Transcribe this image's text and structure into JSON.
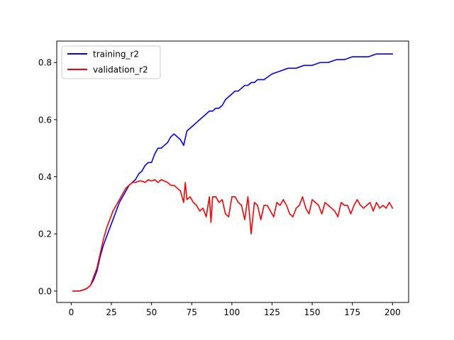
{
  "chart_data": {
    "type": "line",
    "title": "",
    "xlabel": "",
    "ylabel": "",
    "xlim": [
      -9,
      210
    ],
    "ylim": [
      -0.04,
      0.875
    ],
    "xticks": [
      0,
      25,
      50,
      75,
      100,
      125,
      150,
      175,
      200
    ],
    "yticks": [
      0.0,
      0.2,
      0.4,
      0.6,
      0.8
    ],
    "xtick_labels": [
      "0",
      "25",
      "50",
      "75",
      "100",
      "125",
      "150",
      "175",
      "200"
    ],
    "ytick_labels": [
      "0.0",
      "0.2",
      "0.4",
      "0.6",
      "0.8"
    ],
    "grid": false,
    "legend": "top-left",
    "series": [
      {
        "name": "training_r2",
        "color": "#0000ff",
        "x": [
          1,
          5,
          8,
          10,
          12,
          14,
          16,
          18,
          20,
          22,
          24,
          26,
          28,
          30,
          32,
          34,
          36,
          38,
          40,
          42,
          44,
          46,
          48,
          50,
          52,
          54,
          56,
          58,
          60,
          62,
          64,
          66,
          68,
          70,
          72,
          74,
          76,
          78,
          80,
          82,
          84,
          86,
          88,
          90,
          92,
          94,
          96,
          98,
          100,
          102,
          104,
          106,
          108,
          110,
          112,
          114,
          116,
          118,
          120,
          125,
          130,
          135,
          140,
          145,
          150,
          155,
          160,
          165,
          170,
          175,
          180,
          185,
          190,
          195,
          200
        ],
        "y": [
          0.0,
          0.0,
          0.005,
          0.01,
          0.02,
          0.04,
          0.07,
          0.12,
          0.16,
          0.19,
          0.22,
          0.25,
          0.28,
          0.31,
          0.33,
          0.35,
          0.37,
          0.38,
          0.39,
          0.41,
          0.42,
          0.44,
          0.45,
          0.45,
          0.48,
          0.5,
          0.5,
          0.51,
          0.52,
          0.54,
          0.55,
          0.54,
          0.53,
          0.51,
          0.56,
          0.57,
          0.58,
          0.59,
          0.6,
          0.61,
          0.62,
          0.63,
          0.63,
          0.64,
          0.64,
          0.65,
          0.67,
          0.68,
          0.69,
          0.7,
          0.7,
          0.71,
          0.72,
          0.72,
          0.73,
          0.73,
          0.74,
          0.74,
          0.74,
          0.76,
          0.77,
          0.78,
          0.78,
          0.79,
          0.79,
          0.8,
          0.8,
          0.81,
          0.81,
          0.82,
          0.82,
          0.82,
          0.83,
          0.83,
          0.83
        ]
      },
      {
        "name": "validation_r2",
        "color": "#ff0000",
        "x": [
          1,
          5,
          8,
          10,
          12,
          14,
          16,
          18,
          20,
          22,
          24,
          26,
          28,
          30,
          32,
          34,
          36,
          38,
          40,
          42,
          44,
          46,
          48,
          50,
          52,
          54,
          56,
          58,
          60,
          62,
          64,
          66,
          68,
          70,
          71,
          72,
          74,
          76,
          78,
          80,
          82,
          84,
          86,
          87,
          88,
          90,
          92,
          94,
          96,
          98,
          100,
          102,
          104,
          106,
          108,
          110,
          112,
          114,
          116,
          118,
          120,
          122,
          124,
          126,
          128,
          130,
          132,
          134,
          136,
          138,
          140,
          142,
          144,
          146,
          148,
          150,
          152,
          154,
          156,
          158,
          160,
          162,
          164,
          166,
          168,
          170,
          172,
          174,
          176,
          178,
          180,
          182,
          184,
          186,
          188,
          190,
          192,
          194,
          196,
          198,
          200
        ],
        "y": [
          0.0,
          0.0,
          0.005,
          0.01,
          0.02,
          0.05,
          0.08,
          0.13,
          0.18,
          0.22,
          0.25,
          0.28,
          0.3,
          0.32,
          0.34,
          0.36,
          0.37,
          0.38,
          0.38,
          0.385,
          0.385,
          0.38,
          0.39,
          0.385,
          0.39,
          0.38,
          0.39,
          0.385,
          0.38,
          0.37,
          0.37,
          0.36,
          0.35,
          0.31,
          0.38,
          0.32,
          0.33,
          0.31,
          0.3,
          0.28,
          0.29,
          0.26,
          0.33,
          0.24,
          0.33,
          0.33,
          0.31,
          0.32,
          0.27,
          0.26,
          0.33,
          0.33,
          0.31,
          0.3,
          0.25,
          0.33,
          0.2,
          0.31,
          0.3,
          0.25,
          0.3,
          0.3,
          0.28,
          0.26,
          0.31,
          0.3,
          0.32,
          0.3,
          0.27,
          0.26,
          0.29,
          0.3,
          0.33,
          0.29,
          0.27,
          0.32,
          0.31,
          0.3,
          0.27,
          0.31,
          0.3,
          0.29,
          0.28,
          0.26,
          0.31,
          0.3,
          0.3,
          0.27,
          0.3,
          0.32,
          0.3,
          0.29,
          0.3,
          0.31,
          0.28,
          0.31,
          0.29,
          0.3,
          0.29,
          0.31,
          0.29
        ]
      }
    ]
  }
}
